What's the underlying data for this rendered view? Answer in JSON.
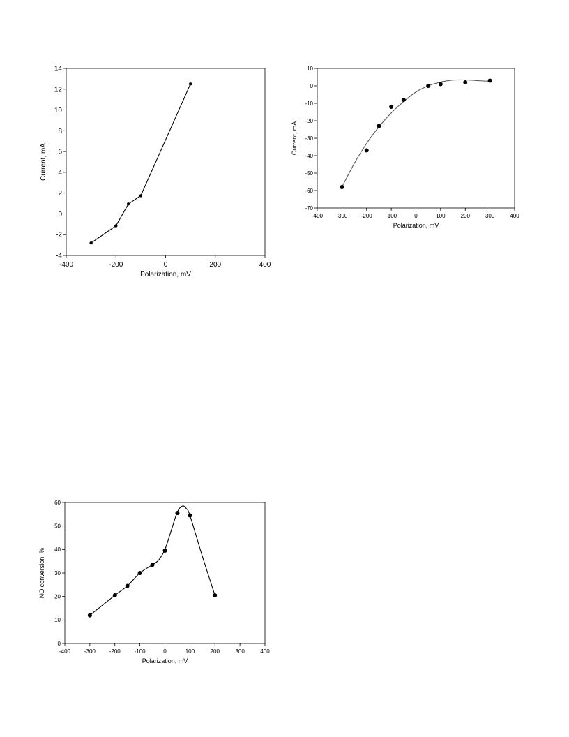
{
  "chart_data": [
    {
      "type": "line",
      "title": "",
      "xlabel": "Polarization, mV",
      "ylabel": "Current, mA",
      "xlim": [
        -400,
        400
      ],
      "ylim": [
        -4,
        14
      ],
      "xticks": [
        -400,
        -200,
        0,
        200,
        400
      ],
      "yticks": [
        -4,
        -2,
        0,
        2,
        4,
        6,
        8,
        10,
        12,
        14
      ],
      "grid": false,
      "series": [
        {
          "x": [
            -300,
            -200,
            -150,
            -100,
            100
          ],
          "y": [
            -2.8,
            -1.15,
            0.95,
            1.75,
            12.5
          ],
          "marker": "circle-small",
          "line": "connect",
          "color": "#000000"
        }
      ]
    },
    {
      "type": "scatter",
      "title": "",
      "xlabel": "Polarization, mV",
      "ylabel": "Current, mA",
      "xlim": [
        -400,
        400
      ],
      "ylim": [
        -70,
        10
      ],
      "xticks": [
        -400,
        -300,
        -200,
        -100,
        0,
        100,
        200,
        300,
        400
      ],
      "yticks": [
        -70,
        -60,
        -50,
        -40,
        -30,
        -20,
        -10,
        0,
        10
      ],
      "grid": false,
      "series": [
        {
          "x": [
            -300,
            -200,
            -150,
            -100,
            -50,
            50,
            100,
            200,
            300
          ],
          "y": [
            -58,
            -37,
            -23,
            -12,
            -8,
            0,
            1,
            2,
            3
          ],
          "marker": "circle",
          "color": "#000000"
        }
      ],
      "fit_curve": {
        "x": [
          -300,
          -250,
          -200,
          -150,
          -100,
          -50,
          0,
          50,
          100,
          150,
          200,
          250,
          300
        ],
        "y": [
          -58,
          -44.5,
          -33,
          -23.5,
          -15.5,
          -9,
          -3.5,
          0,
          2.2,
          3.3,
          3.4,
          3.0,
          2.6
        ],
        "color": "#555555"
      }
    },
    {
      "type": "line",
      "title": "",
      "xlabel": "Polarization, mV",
      "ylabel": "NO conversion, %",
      "xlim": [
        -400,
        400
      ],
      "ylim": [
        0,
        60
      ],
      "xticks": [
        -400,
        -300,
        -200,
        -100,
        0,
        100,
        200,
        300,
        400
      ],
      "yticks": [
        0,
        10,
        20,
        30,
        40,
        50,
        60
      ],
      "ytick_labels": [
        "0",
        "10",
        "20",
        "30",
        "40",
        "50",
        "60"
      ],
      "grid": false,
      "series": [
        {
          "x": [
            -300,
            -200,
            -150,
            -100,
            -50,
            0,
            50,
            100,
            200
          ],
          "y": [
            12,
            20.5,
            24.5,
            30,
            33.5,
            39.5,
            55.5,
            54.5,
            20.5
          ],
          "marker": "circle",
          "color": "#000000"
        }
      ],
      "smooth_curve": {
        "x": [
          -300,
          -200,
          -150,
          -100,
          -50,
          -25,
          0,
          25,
          50,
          70,
          85,
          100,
          150,
          200
        ],
        "y": [
          12,
          20.5,
          24.5,
          30,
          33.5,
          35.5,
          40,
          48,
          56,
          58.5,
          57.5,
          54.5,
          37,
          20.5
        ],
        "color": "#000000"
      }
    }
  ]
}
